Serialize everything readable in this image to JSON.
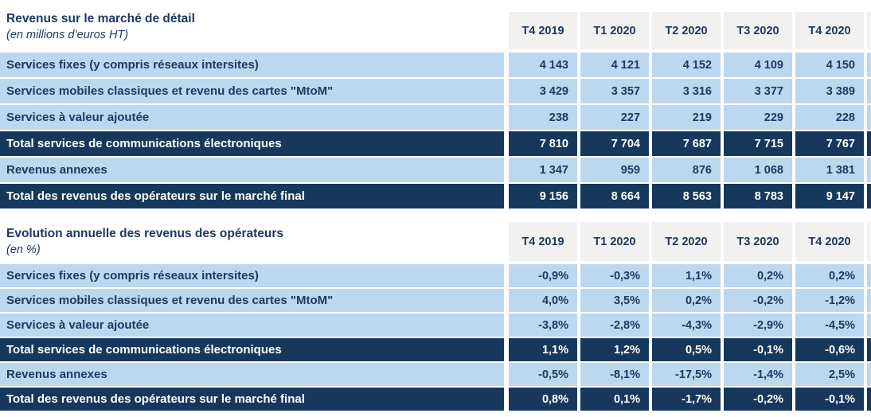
{
  "colors": {
    "navy": "#17375D",
    "light_blue": "#BDD7EE",
    "header_gray": "#F2F1EF",
    "text_navy": "#1F3864",
    "white": "#FFFFFF"
  },
  "tables": [
    {
      "title": "Revenus sur le marché de détail",
      "subtitle": "(en millions d’euros HT)",
      "columns": [
        "T4 2019",
        "T1 2020",
        "T2 2020",
        "T3 2020",
        "T4 2020"
      ],
      "rows": [
        {
          "label": "Services fixes (y compris réseaux intersites)",
          "values": [
            "4 143",
            "4 121",
            "4 152",
            "4 109",
            "4 150"
          ]
        },
        {
          "label": "Services mobiles classiques et revenu des cartes \"MtoM\"",
          "values": [
            "3 429",
            "3 357",
            "3 316",
            "3 377",
            "3 389"
          ]
        },
        {
          "label": "Services à valeur ajoutée",
          "values": [
            "238",
            "227",
            "219",
            "229",
            "228"
          ]
        },
        {
          "label": "Total services de communications électroniques",
          "values": [
            "7 810",
            "7 704",
            "7 687",
            "7 715",
            "7 767"
          ]
        },
        {
          "label": "Revenus annexes",
          "values": [
            "1 347",
            "959",
            "876",
            "1 068",
            "1 381"
          ]
        },
        {
          "label": "Total des revenus des opérateurs sur le marché final",
          "values": [
            "9 156",
            "8 664",
            "8 563",
            "8 783",
            "9 147"
          ]
        }
      ]
    },
    {
      "title": "Evolution annuelle des revenus des opérateurs",
      "subtitle": "(en %)",
      "columns": [
        "T4 2019",
        "T1 2020",
        "T2 2020",
        "T3 2020",
        "T4 2020"
      ],
      "rows": [
        {
          "label": "Services fixes (y compris réseaux intersites)",
          "values": [
            "-0,9%",
            "-0,3%",
            "1,1%",
            "0,2%",
            "0,2%"
          ]
        },
        {
          "label": "Services mobiles classiques et revenu des cartes \"MtoM\"",
          "values": [
            "4,0%",
            "3,5%",
            "0,2%",
            "-0,2%",
            "-1,2%"
          ]
        },
        {
          "label": "Services à valeur ajoutée",
          "values": [
            "-3,8%",
            "-2,8%",
            "-4,3%",
            "-2,9%",
            "-4,5%"
          ]
        },
        {
          "label": "Total services de communications électroniques",
          "values": [
            "1,1%",
            "1,2%",
            "0,5%",
            "-0,1%",
            "-0,6%"
          ]
        },
        {
          "label": "Revenus annexes",
          "values": [
            "-0,5%",
            "-8,1%",
            "-17,5%",
            "-1,4%",
            "2,5%"
          ]
        },
        {
          "label": "Total des revenus des opérateurs sur le marché final",
          "values": [
            "0,8%",
            "0,1%",
            "-1,7%",
            "-0,2%",
            "-0,1%"
          ]
        }
      ]
    }
  ]
}
